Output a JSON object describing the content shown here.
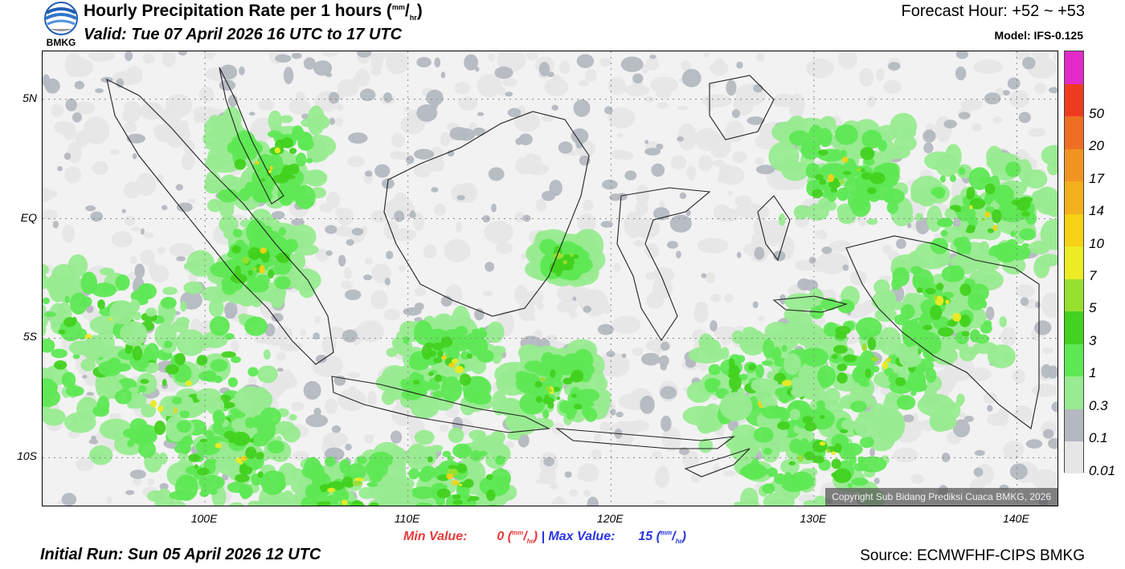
{
  "header": {
    "title_main": "Hourly Precipitation Rate per 1 hours (",
    "title_unit_num": "mm",
    "title_unit_sep": "/",
    "title_unit_den": "hr",
    "title_close": ")",
    "valid": "Valid: Tue 07 April 2026 16 UTC to 17 UTC",
    "forecast_hour": "Forecast Hour: +52 ~ +53",
    "model": "Model: IFS-0.125",
    "logo_text": "BMKG"
  },
  "map": {
    "lon_range": [
      92,
      142
    ],
    "lat_range": [
      -12,
      7
    ],
    "lat_ticks": [
      {
        "label": "5N",
        "value": 5
      },
      {
        "label": "EQ",
        "value": 0
      },
      {
        "label": "5S",
        "value": -5
      },
      {
        "label": "10S",
        "value": -10
      }
    ],
    "lon_ticks": [
      {
        "label": "100E",
        "value": 100
      },
      {
        "label": "110E",
        "value": 110
      },
      {
        "label": "120E",
        "value": 120
      },
      {
        "label": "130E",
        "value": 130
      },
      {
        "label": "140E",
        "value": 140
      }
    ],
    "grid": "dotted",
    "copyright": "Copyright Sub Bidang Prediksi Cuaca BMKG, 2026"
  },
  "legend": {
    "levels": [
      {
        "label": "0.01",
        "color": "#e6e6e6"
      },
      {
        "label": "0.1",
        "color": "#b4b8c0"
      },
      {
        "label": "0.3",
        "color": "#98eb90"
      },
      {
        "label": "1",
        "color": "#5ee854"
      },
      {
        "label": "3",
        "color": "#42d21f"
      },
      {
        "label": "5",
        "color": "#98e030"
      },
      {
        "label": "7",
        "color": "#eceb24"
      },
      {
        "label": "10",
        "color": "#f5d214"
      },
      {
        "label": "14",
        "color": "#f3b11c"
      },
      {
        "label": "17",
        "color": "#f19522"
      },
      {
        "label": "20",
        "color": "#ee6f24"
      },
      {
        "label": "50",
        "color": "#ee3b20"
      },
      {
        "label": "",
        "color": "#e22ac8"
      }
    ]
  },
  "stats": {
    "min_label": "Min Value:",
    "min_value": "0",
    "max_label": "Max Value:",
    "max_value": "15",
    "unit_num": "mm",
    "unit_sep": "/",
    "unit_den": "hr",
    "separator": "|",
    "min_color": "#e53b3b",
    "max_color": "#2a35e0"
  },
  "footer": {
    "initial_run": "Initial Run: Sun 05 April 2026 12 UTC",
    "source": "Source: ECMWFHF-CIPS BMKG"
  }
}
